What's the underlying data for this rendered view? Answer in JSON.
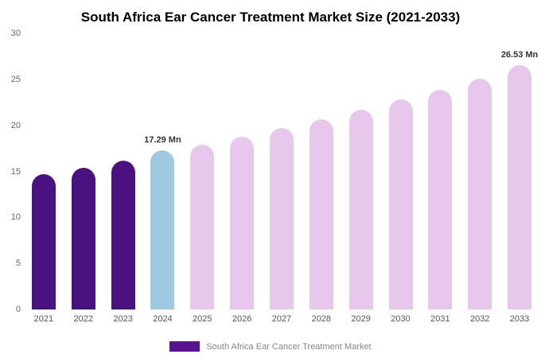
{
  "title": "South Africa Ear Cancer Treatment Market Size (2021-2033)",
  "legend": {
    "label": "South Africa Ear Cancer Treatment Market",
    "swatch_color": "#5a1192"
  },
  "chart_data": {
    "type": "bar",
    "title": "South Africa Ear Cancer Treatment Market Size (2021-2033)",
    "xlabel": "",
    "ylabel": "",
    "ylim": [
      0,
      30
    ],
    "yticks": [
      0,
      5,
      10,
      15,
      20,
      25,
      30
    ],
    "grid": false,
    "legend_position": "bottom",
    "unit": "Mn",
    "palette": {
      "historical": "#4a1181",
      "current": "#9ec9e2",
      "forecast": "#e7c7ec"
    },
    "categories": [
      "2021",
      "2022",
      "2023",
      "2024",
      "2025",
      "2026",
      "2027",
      "2028",
      "2029",
      "2030",
      "2031",
      "2032",
      "2033"
    ],
    "values": [
      14.7,
      15.4,
      16.2,
      17.29,
      17.9,
      18.8,
      19.7,
      20.7,
      21.7,
      22.8,
      23.9,
      25.1,
      26.53
    ],
    "points": [
      {
        "year": "2021",
        "value": 14.7,
        "color": "historical",
        "label": null
      },
      {
        "year": "2022",
        "value": 15.4,
        "color": "historical",
        "label": null
      },
      {
        "year": "2023",
        "value": 16.2,
        "color": "historical",
        "label": null
      },
      {
        "year": "2024",
        "value": 17.29,
        "color": "current",
        "label": "17.29 Mn"
      },
      {
        "year": "2025",
        "value": 17.9,
        "color": "forecast",
        "label": null
      },
      {
        "year": "2026",
        "value": 18.8,
        "color": "forecast",
        "label": null
      },
      {
        "year": "2027",
        "value": 19.7,
        "color": "forecast",
        "label": null
      },
      {
        "year": "2028",
        "value": 20.7,
        "color": "forecast",
        "label": null
      },
      {
        "year": "2029",
        "value": 21.7,
        "color": "forecast",
        "label": null
      },
      {
        "year": "2030",
        "value": 22.8,
        "color": "forecast",
        "label": null
      },
      {
        "year": "2031",
        "value": 23.9,
        "color": "forecast",
        "label": null
      },
      {
        "year": "2032",
        "value": 25.1,
        "color": "forecast",
        "label": null
      },
      {
        "year": "2033",
        "value": 26.53,
        "color": "forecast",
        "label": "26.53 Mn"
      }
    ],
    "annotations": [
      {
        "category": "2024",
        "text": "17.29 Mn"
      },
      {
        "category": "2033",
        "text": "26.53 Mn"
      }
    ]
  }
}
